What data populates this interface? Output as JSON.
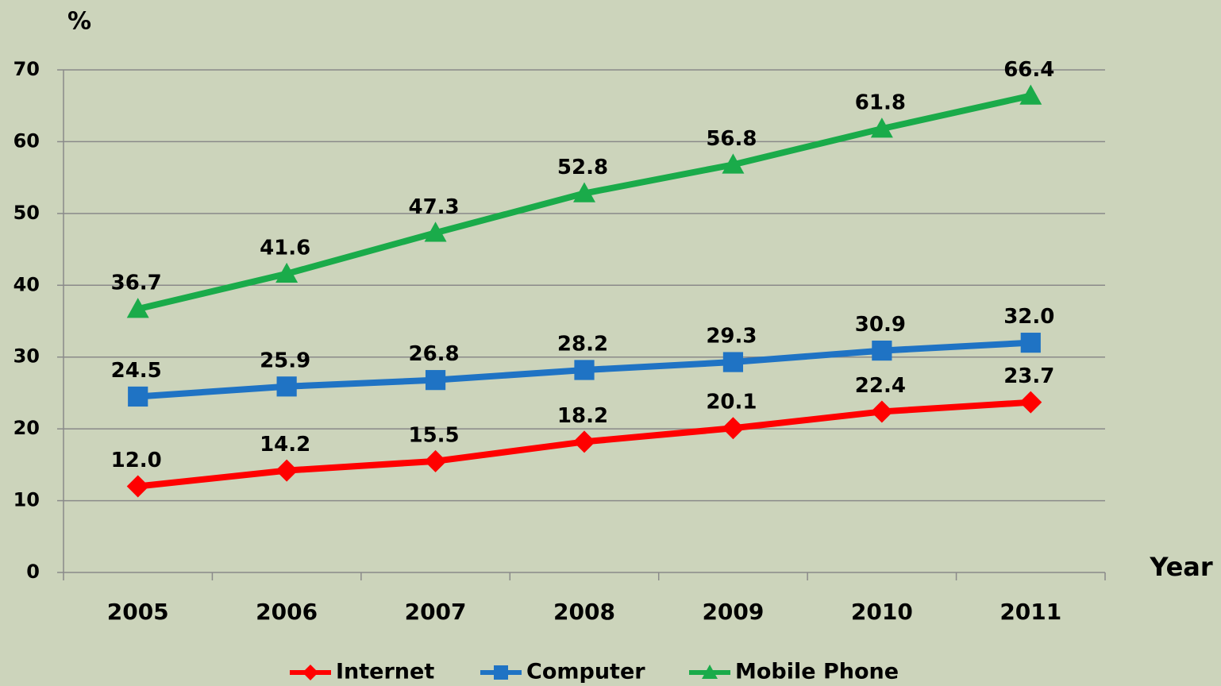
{
  "chart_data": {
    "type": "line",
    "y_label": "%",
    "x_label": "Year",
    "categories": [
      "2005",
      "2006",
      "2007",
      "2008",
      "2009",
      "2010",
      "2011"
    ],
    "series": [
      {
        "name": "Internet",
        "color": "#ff0000",
        "marker": "diamond",
        "values": [
          12.0,
          14.2,
          15.5,
          18.2,
          20.1,
          22.4,
          23.7
        ],
        "value_labels": [
          "12.0",
          "14.2",
          "15.5",
          "18.2",
          "20.1",
          "22.4",
          "23.7"
        ]
      },
      {
        "name": "Computer",
        "color": "#1f73c4",
        "marker": "square",
        "values": [
          24.5,
          25.9,
          26.8,
          28.2,
          29.3,
          30.9,
          32.0
        ],
        "value_labels": [
          "24.5",
          "25.9",
          "26.8",
          "28.2",
          "29.3",
          "30.9",
          "32.0"
        ]
      },
      {
        "name": "Mobile Phone",
        "color": "#1aab4a",
        "marker": "triangle",
        "values": [
          36.7,
          41.6,
          47.3,
          52.8,
          56.8,
          61.8,
          66.4
        ],
        "value_labels": [
          "36.7",
          "41.6",
          "47.3",
          "52.8",
          "56.8",
          "61.8",
          "66.4"
        ]
      }
    ],
    "ylim": [
      0,
      70
    ],
    "yticks": [
      0,
      10,
      20,
      30,
      40,
      50,
      60,
      70
    ],
    "grid": true,
    "legend": "bottom"
  }
}
